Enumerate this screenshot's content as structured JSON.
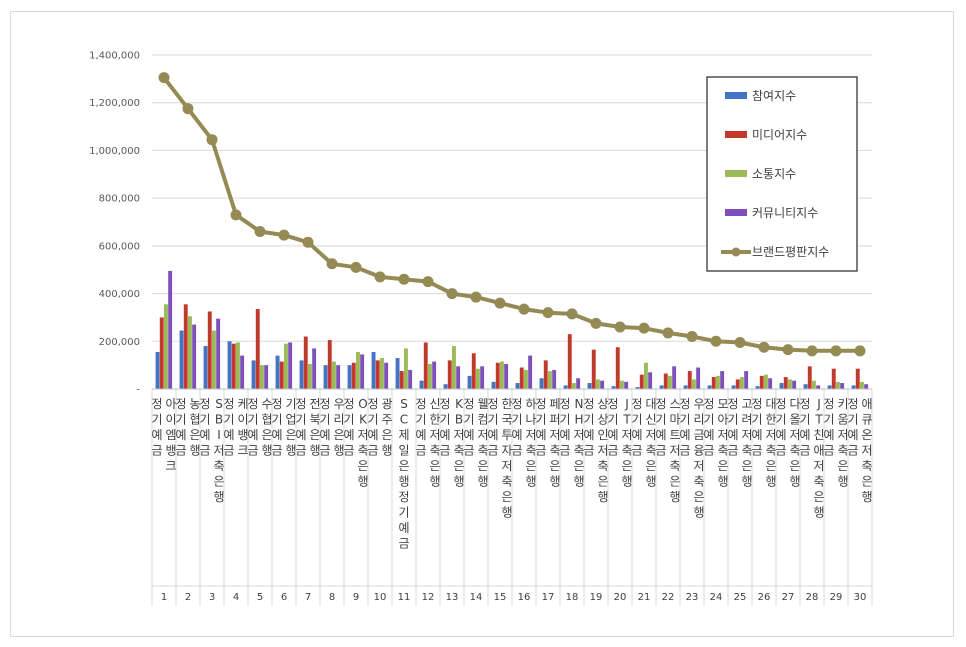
{
  "chart_data": {
    "type": "bar",
    "yticks": [
      "1,400,000",
      "1,200,000",
      "1,000,000",
      "800,000",
      "600,000",
      "400,000",
      "200,000",
      "-"
    ],
    "ylim": [
      0,
      1400000
    ],
    "grid": true,
    "legend_position": "top-right",
    "ranks": [
      "1",
      "2",
      "3",
      "4",
      "5",
      "6",
      "7",
      "8",
      "9",
      "10",
      "11",
      "12",
      "13",
      "14",
      "15",
      "16",
      "17",
      "18",
      "19",
      "20",
      "21",
      "22",
      "23",
      "24",
      "25",
      "26",
      "27",
      "28",
      "29",
      "30"
    ],
    "categories": [
      "아이엠뱅크 정기예금",
      "농협은행 정기예금",
      "SBI저축은행 정기예금",
      "케이뱅크 정기예금",
      "수협은행 정기예금",
      "기업은행 정기예금",
      "전북은행 정기예금",
      "우리은행 정기예금",
      "OK저축은행 정기예금",
      "광주은행 정기예금",
      "SC제일은행정기예금",
      "신한저축은행 정기예금",
      "KB저축은행 정기예금",
      "웰컴저축은행 정기예금",
      "한국투자저축은행 정기예금",
      "하나저축은행 정기예금",
      "페퍼저축은행 정기예금",
      "NH저축은행 정기예금",
      "상상인저축은행 정기예금",
      "JT저축은행 정기예금",
      "대신저축은행 정기예금",
      "스마트저축은행 정기예금",
      "우리금융저축은행 정기예금",
      "모아저축은행 정기예금",
      "고려저축은행 정기예금",
      "대한저축은행 정기예금",
      "다올저축은행 정기예금",
      "JT친애저축은행 정기예금",
      "키움저축은행 정기예금",
      "애큐온저축은행 정기예금"
    ],
    "series": [
      {
        "name": "참여지수",
        "kind": "bar",
        "color": "#4472c4",
        "values": [
          155000,
          245000,
          180000,
          200000,
          120000,
          140000,
          120000,
          100000,
          100000,
          155000,
          130000,
          35000,
          20000,
          55000,
          30000,
          25000,
          45000,
          15000,
          25000,
          12000,
          8000,
          15000,
          15000,
          15000,
          15000,
          12000,
          25000,
          20000,
          15000,
          15000
        ]
      },
      {
        "name": "미디어지수",
        "kind": "bar",
        "color": "#c0392b",
        "values": [
          300000,
          355000,
          325000,
          190000,
          335000,
          115000,
          220000,
          205000,
          110000,
          120000,
          75000,
          195000,
          120000,
          150000,
          110000,
          90000,
          120000,
          230000,
          165000,
          175000,
          60000,
          65000,
          75000,
          50000,
          40000,
          55000,
          50000,
          95000,
          85000,
          85000
        ]
      },
      {
        "name": "소통지수",
        "kind": "bar",
        "color": "#9bbb59",
        "values": [
          355000,
          305000,
          245000,
          195000,
          100000,
          190000,
          105000,
          115000,
          155000,
          130000,
          170000,
          105000,
          180000,
          85000,
          115000,
          80000,
          75000,
          25000,
          40000,
          35000,
          110000,
          55000,
          40000,
          55000,
          50000,
          60000,
          40000,
          35000,
          30000,
          30000
        ]
      },
      {
        "name": "커뮤니티지수",
        "kind": "bar",
        "color": "#7d4fb8",
        "values": [
          495000,
          270000,
          295000,
          140000,
          100000,
          195000,
          170000,
          100000,
          145000,
          110000,
          80000,
          115000,
          95000,
          95000,
          105000,
          140000,
          80000,
          45000,
          35000,
          30000,
          70000,
          95000,
          90000,
          75000,
          75000,
          45000,
          35000,
          15000,
          25000,
          20000
        ]
      },
      {
        "name": "브랜드평판지수",
        "kind": "line",
        "color": "#948a54",
        "values": [
          1305000,
          1175000,
          1045000,
          730000,
          660000,
          645000,
          615000,
          525000,
          510000,
          470000,
          460000,
          450000,
          400000,
          385000,
          360000,
          335000,
          320000,
          315000,
          275000,
          260000,
          255000,
          235000,
          220000,
          200000,
          195000,
          175000,
          165000,
          160000,
          160000,
          160000
        ]
      }
    ]
  }
}
